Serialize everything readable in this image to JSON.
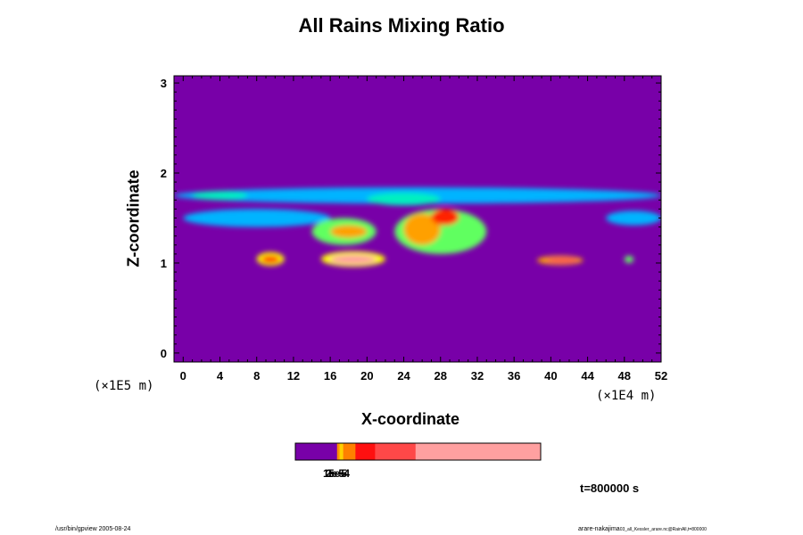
{
  "chart_data": {
    "type": "heatmap",
    "title": "All Rains Mixing Ratio",
    "xlabel": "X-coordinate",
    "ylabel": "Z-coordinate",
    "x_scale_note": "(×1E4 m)",
    "y_scale_note": "(×1E5 m)",
    "xlim": [
      -1,
      52
    ],
    "ylim": [
      -0.1,
      3.08
    ],
    "x_ticks": [
      0,
      4,
      8,
      12,
      16,
      20,
      24,
      28,
      32,
      36,
      40,
      44,
      48,
      52
    ],
    "y_ticks": [
      0,
      1,
      2,
      3
    ],
    "colors": {
      "background": "#7800a8",
      "level_colors": [
        "#2020e0",
        "#00b4ff",
        "#00f0c0",
        "#60ff60",
        "#ffff00",
        "#ffa000",
        "#ff2000",
        "#ff5050",
        "#ffa0a0"
      ]
    },
    "features": [
      {
        "x0": -1,
        "x1": 52,
        "z0": 1.66,
        "z1": 1.84,
        "level": 1
      },
      {
        "x0": 0,
        "x1": 16,
        "z0": 1.4,
        "z1": 1.6,
        "level": 1
      },
      {
        "x0": 46,
        "x1": 52,
        "z0": 1.42,
        "z1": 1.58,
        "level": 1
      },
      {
        "x0": 20,
        "x1": 28,
        "z0": 1.64,
        "z1": 1.78,
        "level": 2
      },
      {
        "x0": 1,
        "x1": 7,
        "z0": 1.7,
        "z1": 1.8,
        "level": 2
      },
      {
        "x0": 14,
        "x1": 21,
        "z0": 1.2,
        "z1": 1.5,
        "level": 3
      },
      {
        "x0": 23,
        "x1": 33,
        "z0": 1.1,
        "z1": 1.6,
        "level": 3
      },
      {
        "x0": 16,
        "x1": 20,
        "z0": 1.28,
        "z1": 1.42,
        "level": 5
      },
      {
        "x0": 24,
        "x1": 28,
        "z0": 1.2,
        "z1": 1.55,
        "level": 5
      },
      {
        "x0": 27,
        "x1": 30,
        "z0": 1.42,
        "z1": 1.6,
        "level": 6
      },
      {
        "x0": 8,
        "x1": 11,
        "z0": 0.97,
        "z1": 1.12,
        "level": 4
      },
      {
        "x0": 15,
        "x1": 22,
        "z0": 0.96,
        "z1": 1.13,
        "level": 4
      },
      {
        "x0": 16,
        "x1": 21,
        "z0": 0.99,
        "z1": 1.09,
        "level": 8
      },
      {
        "x0": 8.5,
        "x1": 10.5,
        "z0": 1.0,
        "z1": 1.08,
        "level": 6
      },
      {
        "x0": 38.5,
        "x1": 43.5,
        "z0": 0.98,
        "z1": 1.08,
        "level": 5
      },
      {
        "x0": 39.5,
        "x1": 43,
        "z0": 1.0,
        "z1": 1.06,
        "level": 7
      },
      {
        "x0": 48,
        "x1": 49,
        "z0": 1.0,
        "z1": 1.08,
        "level": 3
      }
    ],
    "colorbar": {
      "segments": [
        {
          "color": "#7800a8",
          "fraction": 0.17
        },
        {
          "color": "#ff9000",
          "fraction": 0.01
        },
        {
          "color": "#ffd000",
          "fraction": 0.015
        },
        {
          "color": "#ff8000",
          "fraction": 0.05
        },
        {
          "color": "#ff1010",
          "fraction": 0.08
        },
        {
          "color": "#ff4848",
          "fraction": 0.165
        },
        {
          "color": "#ffa0a0",
          "fraction": 0.51
        }
      ],
      "labels": [
        "1e-5",
        "2e-5",
        "5e-4"
      ]
    },
    "time_label": "t=800000 s"
  },
  "footer": {
    "left": "/usr/bin/gpview 2005-08-24",
    "right": "arare-nakajima",
    "right_small": "03_all_Kessler_arare.nc@RainAll,t=800000"
  }
}
